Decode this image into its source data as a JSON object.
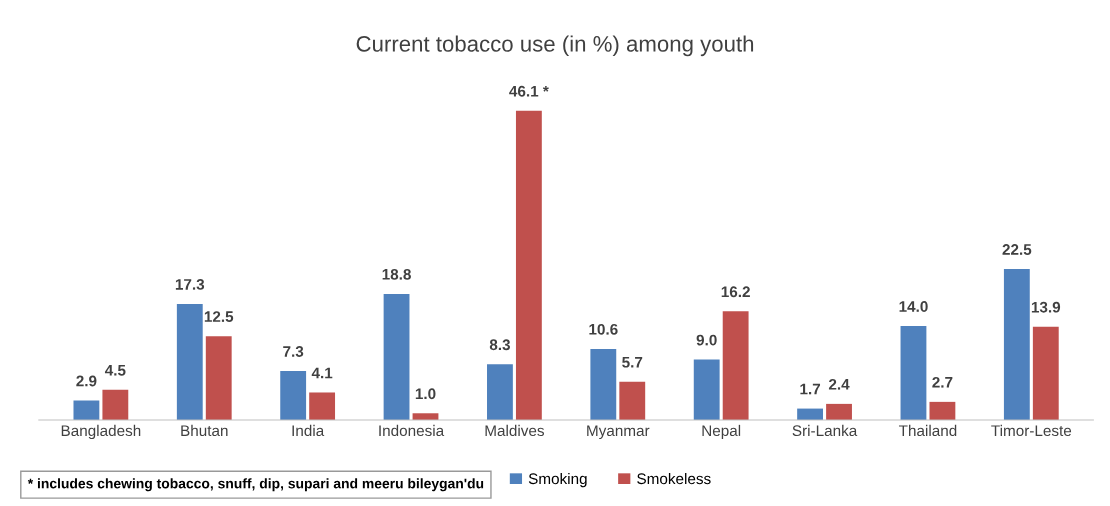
{
  "chart_data": {
    "type": "bar",
    "title": "Current tobacco use (in %) among youth",
    "categories": [
      "Bangladesh",
      "Bhutan",
      "India",
      "Indonesia",
      "Maldives",
      "Myanmar",
      "Nepal",
      "Sri-Lanka",
      "Thailand",
      "Timor-Leste"
    ],
    "series": [
      {
        "name": "Smoking",
        "color": "#4f81bd",
        "values": [
          2.9,
          17.3,
          7.3,
          18.8,
          8.3,
          10.6,
          9.0,
          1.7,
          14.0,
          22.5
        ],
        "value_labels": [
          "2.9",
          "17.3",
          "7.3",
          "18.8",
          "8.3",
          "10.6",
          "9.0",
          "1.7",
          "14.0",
          "22.5"
        ]
      },
      {
        "name": "Smokeless",
        "color": "#c0504d",
        "values": [
          4.5,
          12.5,
          4.1,
          1.0,
          46.1,
          5.7,
          16.2,
          2.4,
          2.7,
          13.9
        ],
        "value_labels": [
          "4.5",
          "12.5",
          "4.1",
          "1.0",
          "46.1 *",
          "5.7",
          "16.2",
          "2.4",
          "2.7",
          "13.9"
        ]
      }
    ],
    "annotations": [
      "* includes chewing tobacco, snuff, dip, supari and meeru bileygan'du"
    ],
    "legend": "bottom",
    "grid": false
  }
}
